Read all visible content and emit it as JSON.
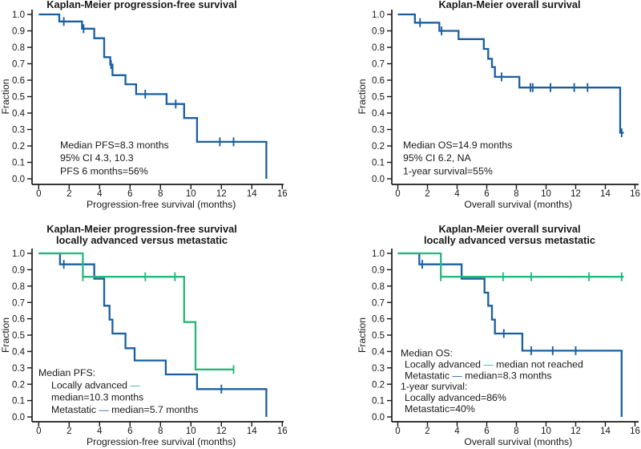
{
  "figure": {
    "background": "#ffffff"
  },
  "colors": {
    "blue": "#1a5fa0",
    "green": "#28b87e",
    "axis": "#191919",
    "text": "#191919"
  },
  "chart_data": [
    {
      "type": "line",
      "id": "pfs-all",
      "title_lines": [
        "Kaplan-Meier progression-free survival"
      ],
      "xlabel": "Progression-free survival (months)",
      "ylabel": "Fraction",
      "xlim": [
        0,
        16
      ],
      "ylim": [
        0.0,
        1.0
      ],
      "x_ticks": [
        0,
        2,
        4,
        6,
        8,
        10,
        12,
        14,
        16
      ],
      "y_ticks": [
        0.0,
        0.1,
        0.2,
        0.3,
        0.4,
        0.5,
        0.6,
        0.7,
        0.8,
        0.9,
        1.0
      ],
      "grid": false,
      "legend_position": "none",
      "annotation": {
        "lines": [
          {
            "indent": 0,
            "segments": [
              {
                "t": "Median PFS=8.3 months"
              }
            ]
          },
          {
            "indent": 0,
            "segments": [
              {
                "t": "95% CI 4.3, 10.3"
              }
            ]
          },
          {
            "indent": 0,
            "segments": [
              {
                "t": "PFS 6 months=56%"
              }
            ]
          }
        ]
      },
      "series": [
        {
          "color": "blue",
          "start": [
            0,
            1.0
          ],
          "end": 14.95,
          "drops": [
            [
              1.35,
              0.957
            ],
            [
              2.85,
              0.913
            ],
            [
              3.65,
              0.855
            ],
            [
              4.3,
              0.74
            ],
            [
              4.7,
              0.695
            ],
            [
              4.85,
              0.63
            ],
            [
              5.7,
              0.575
            ],
            [
              6.4,
              0.515
            ],
            [
              8.4,
              0.455
            ],
            [
              9.55,
              0.37
            ],
            [
              10.4,
              0.225
            ],
            [
              14.95,
              0.0
            ]
          ],
          "censors": [
            [
              1.65,
              0.957
            ],
            [
              2.95,
              0.913
            ],
            [
              4.75,
              0.695
            ],
            [
              7.0,
              0.515
            ],
            [
              9.0,
              0.455
            ],
            [
              11.9,
              0.225
            ],
            [
              12.8,
              0.225
            ]
          ]
        }
      ]
    },
    {
      "type": "line",
      "id": "os-all",
      "title_lines": [
        "Kaplan-Meier overall survival"
      ],
      "xlabel": "Overall survival (months)",
      "ylabel": "Fraction",
      "xlim": [
        0,
        16
      ],
      "ylim": [
        0.0,
        1.0
      ],
      "x_ticks": [
        0,
        2,
        4,
        6,
        8,
        10,
        12,
        14,
        16
      ],
      "y_ticks": [
        0.0,
        0.1,
        0.2,
        0.3,
        0.4,
        0.5,
        0.6,
        0.7,
        0.8,
        0.9,
        1.0
      ],
      "grid": false,
      "legend_position": "none",
      "annotation": {
        "lines": [
          {
            "indent": 0,
            "segments": [
              {
                "t": "Median OS=14.9 months"
              }
            ]
          },
          {
            "indent": 0,
            "segments": [
              {
                "t": "95% CI 6.2, NA"
              }
            ]
          },
          {
            "indent": 0,
            "segments": [
              {
                "t": "1-year survival=55%"
              }
            ]
          }
        ]
      },
      "series": [
        {
          "color": "blue",
          "start": [
            0,
            1.0
          ],
          "end": 15.25,
          "drops": [
            [
              1.15,
              0.95
            ],
            [
              2.8,
              0.9
            ],
            [
              4.1,
              0.85
            ],
            [
              5.8,
              0.79
            ],
            [
              6.1,
              0.73
            ],
            [
              6.35,
              0.68
            ],
            [
              6.55,
              0.62
            ],
            [
              8.2,
              0.555
            ],
            [
              15.0,
              0.28
            ]
          ],
          "censors": [
            [
              1.5,
              0.95
            ],
            [
              2.95,
              0.9
            ],
            [
              7.0,
              0.62
            ],
            [
              8.95,
              0.555
            ],
            [
              9.1,
              0.555
            ],
            [
              10.3,
              0.555
            ],
            [
              11.9,
              0.555
            ],
            [
              12.8,
              0.555
            ],
            [
              15.1,
              0.28
            ]
          ]
        }
      ]
    },
    {
      "type": "line",
      "id": "pfs-by-stage",
      "title_lines": [
        "Kaplan-Meier progression-free survival",
        "locally advanced versus metastatic"
      ],
      "xlabel": "Progression-free survival (months)",
      "ylabel": "Fraction",
      "xlim": [
        0,
        16
      ],
      "ylim": [
        0.0,
        1.0
      ],
      "x_ticks": [
        0,
        2,
        4,
        6,
        8,
        10,
        12,
        14,
        16
      ],
      "y_ticks": [
        0.0,
        0.1,
        0.2,
        0.3,
        0.4,
        0.5,
        0.6,
        0.7,
        0.8,
        0.9,
        1.0
      ],
      "grid": false,
      "legend_position": "inside-lower-left",
      "annotation": {
        "lines": [
          {
            "indent": 0,
            "segments": [
              {
                "t": "Median PFS:"
              }
            ]
          },
          {
            "indent": 16,
            "segments": [
              {
                "t": "Locally advanced "
              },
              {
                "t": "—",
                "c": "green"
              }
            ]
          },
          {
            "indent": 16,
            "segments": [
              {
                "t": "median=10.3 months"
              }
            ]
          },
          {
            "indent": 16,
            "segments": [
              {
                "t": "Metastatic "
              },
              {
                "t": "—",
                "c": "blue"
              },
              {
                "t": " median=5.7 months"
              }
            ]
          }
        ]
      },
      "series": [
        {
          "name": "Metastatic",
          "color": "blue",
          "start": [
            0,
            1.0
          ],
          "end": 14.95,
          "drops": [
            [
              1.4,
              0.933
            ],
            [
              3.65,
              0.845
            ],
            [
              4.3,
              0.68
            ],
            [
              4.65,
              0.595
            ],
            [
              4.85,
              0.51
            ],
            [
              5.7,
              0.42
            ],
            [
              6.3,
              0.345
            ],
            [
              8.35,
              0.26
            ],
            [
              10.4,
              0.17
            ],
            [
              14.95,
              0.0
            ]
          ],
          "censors": [
            [
              1.65,
              0.933
            ],
            [
              12.0,
              0.17
            ]
          ]
        },
        {
          "name": "Locally advanced",
          "color": "green",
          "start": [
            0,
            1.0
          ],
          "end": 12.85,
          "drops": [
            [
              2.9,
              0.857
            ],
            [
              9.55,
              0.58
            ],
            [
              10.3,
              0.29
            ]
          ],
          "censors": [
            [
              2.9,
              0.857
            ],
            [
              7.0,
              0.857
            ],
            [
              8.95,
              0.857
            ],
            [
              12.8,
              0.29
            ]
          ]
        }
      ]
    },
    {
      "type": "line",
      "id": "os-by-stage",
      "title_lines": [
        "Kaplan-Meier overall survival",
        "locally advanced versus metastatic"
      ],
      "xlabel": "Overall survival (months)",
      "ylabel": "Fraction",
      "xlim": [
        0,
        16
      ],
      "ylim": [
        0.0,
        1.0
      ],
      "x_ticks": [
        0,
        2,
        4,
        6,
        8,
        10,
        12,
        14,
        16
      ],
      "y_ticks": [
        0.0,
        0.1,
        0.2,
        0.3,
        0.4,
        0.5,
        0.6,
        0.7,
        0.8,
        0.9,
        1.0
      ],
      "grid": false,
      "legend_position": "inside-lower-left",
      "annotation": {
        "lines": [
          {
            "indent": 0,
            "segments": [
              {
                "t": "Median OS:"
              }
            ]
          },
          {
            "indent": 5,
            "segments": [
              {
                "t": "Locally advanced "
              },
              {
                "t": "—",
                "c": "green"
              },
              {
                "t": " median not reached"
              }
            ]
          },
          {
            "indent": 5,
            "segments": [
              {
                "t": "Metastatic "
              },
              {
                "t": "—",
                "c": "blue"
              },
              {
                "t": " median=8.3 months"
              }
            ]
          },
          {
            "indent": 0,
            "segments": [
              {
                "t": "1-year survival:"
              }
            ]
          },
          {
            "indent": 5,
            "segments": [
              {
                "t": "Locally advanced=86%"
              }
            ]
          },
          {
            "indent": 5,
            "segments": [
              {
                "t": "Metastatic=40%"
              }
            ]
          }
        ]
      },
      "series": [
        {
          "name": "Metastatic",
          "color": "blue",
          "start": [
            0,
            1.0
          ],
          "end": 15.1,
          "drops": [
            [
              1.45,
              0.933
            ],
            [
              4.3,
              0.845
            ],
            [
              5.85,
              0.76
            ],
            [
              6.1,
              0.68
            ],
            [
              6.35,
              0.595
            ],
            [
              6.55,
              0.51
            ],
            [
              8.4,
              0.405
            ],
            [
              15.1,
              0.0
            ]
          ],
          "censors": [
            [
              1.65,
              0.933
            ],
            [
              7.15,
              0.51
            ],
            [
              9.0,
              0.405
            ],
            [
              10.45,
              0.405
            ],
            [
              12.0,
              0.405
            ]
          ]
        },
        {
          "name": "Locally advanced",
          "color": "green",
          "start": [
            0,
            1.0
          ],
          "end": 15.25,
          "drops": [
            [
              2.9,
              0.857
            ]
          ],
          "censors": [
            [
              2.9,
              0.857
            ],
            [
              7.1,
              0.857
            ],
            [
              9.0,
              0.857
            ],
            [
              12.9,
              0.857
            ],
            [
              15.1,
              0.857
            ]
          ]
        }
      ]
    }
  ]
}
